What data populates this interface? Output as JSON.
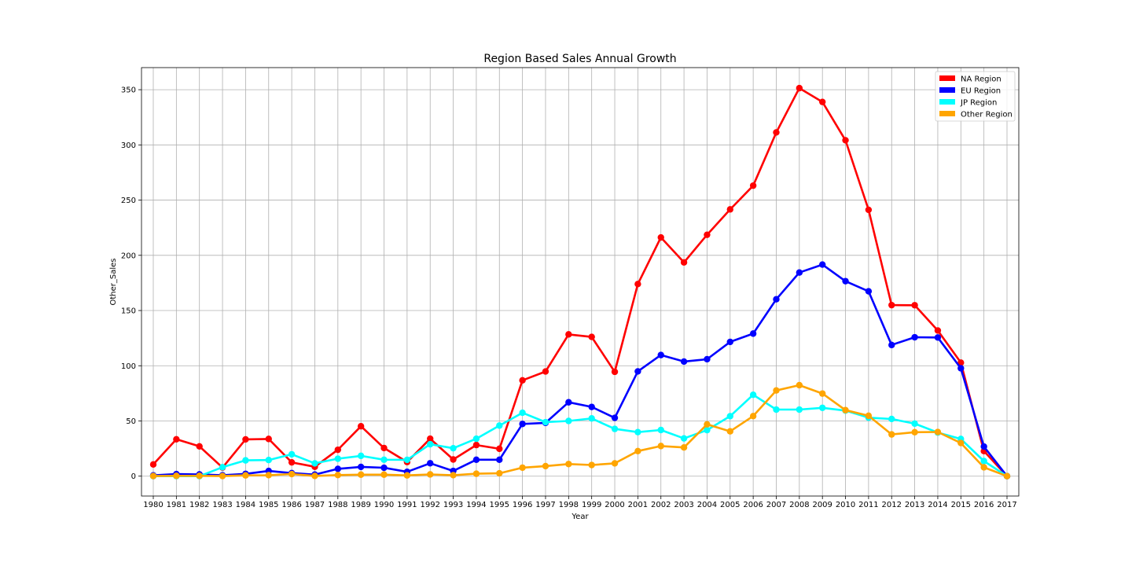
{
  "chart_data": {
    "type": "line",
    "title": "Region Based Sales Annual Growth",
    "xlabel": "Year",
    "ylabel": "Other_Sales",
    "x": [
      "1980",
      "1981",
      "1982",
      "1983",
      "1984",
      "1985",
      "1986",
      "1987",
      "1988",
      "1989",
      "1990",
      "1991",
      "1992",
      "1993",
      "1994",
      "1995",
      "1996",
      "1997",
      "1998",
      "1999",
      "2000",
      "2001",
      "2002",
      "2003",
      "2004",
      "2005",
      "2006",
      "2007",
      "2008",
      "2009",
      "2010",
      "2011",
      "2012",
      "2013",
      "2014",
      "2015",
      "2016",
      "2017"
    ],
    "ylim": [
      -18,
      370
    ],
    "yticks": [
      0,
      50,
      100,
      150,
      200,
      250,
      300,
      350
    ],
    "grid": true,
    "legend_position": "top-right",
    "series": [
      {
        "name": "NA Region",
        "color": "#ff0000",
        "values": [
          10.6,
          33.4,
          27.0,
          7.8,
          33.3,
          33.7,
          12.5,
          8.5,
          23.9,
          45.2,
          25.5,
          12.8,
          33.9,
          15.1,
          28.2,
          24.8,
          86.8,
          94.8,
          128.4,
          126.1,
          94.5,
          174.0,
          216.2,
          193.6,
          218.6,
          241.6,
          263.1,
          311.3,
          351.4,
          338.9,
          304.2,
          241.2,
          154.9,
          154.8,
          131.9,
          102.8,
          22.7,
          0.0
        ]
      },
      {
        "name": "EU Region",
        "color": "#0000ff",
        "values": [
          0.7,
          1.9,
          1.6,
          0.8,
          2.1,
          4.7,
          2.8,
          1.4,
          6.6,
          8.4,
          7.6,
          3.9,
          11.7,
          4.7,
          14.9,
          14.9,
          47.3,
          48.3,
          66.9,
          62.7,
          52.8,
          94.9,
          109.7,
          103.8,
          105.9,
          121.6,
          129.1,
          160.2,
          184.4,
          191.6,
          176.6,
          167.4,
          118.8,
          125.8,
          125.6,
          97.7,
          26.8,
          0.0
        ]
      },
      {
        "name": "JP Region",
        "color": "#00ffff",
        "values": [
          0.0,
          0.0,
          0.0,
          8.1,
          14.3,
          14.6,
          19.8,
          11.6,
          15.8,
          18.4,
          14.9,
          14.8,
          28.9,
          25.3,
          33.9,
          45.8,
          57.4,
          48.9,
          50.0,
          52.3,
          42.8,
          39.9,
          41.8,
          34.2,
          41.7,
          54.3,
          73.7,
          60.3,
          60.3,
          61.9,
          59.4,
          53.0,
          51.8,
          47.6,
          39.5,
          33.7,
          13.7,
          0.0
        ]
      },
      {
        "name": "Other Region",
        "color": "#ffa500",
        "values": [
          0.1,
          0.3,
          0.3,
          0.1,
          0.7,
          0.9,
          1.9,
          0.2,
          1.0,
          1.4,
          1.4,
          0.7,
          1.6,
          0.9,
          2.2,
          2.6,
          7.7,
          9.1,
          11.0,
          10.1,
          11.6,
          22.7,
          27.3,
          26.0,
          46.9,
          40.6,
          54.4,
          77.6,
          82.4,
          74.8,
          59.8,
          54.7,
          37.8,
          39.8,
          40.0,
          30.0,
          8.0,
          0.0
        ]
      }
    ]
  }
}
